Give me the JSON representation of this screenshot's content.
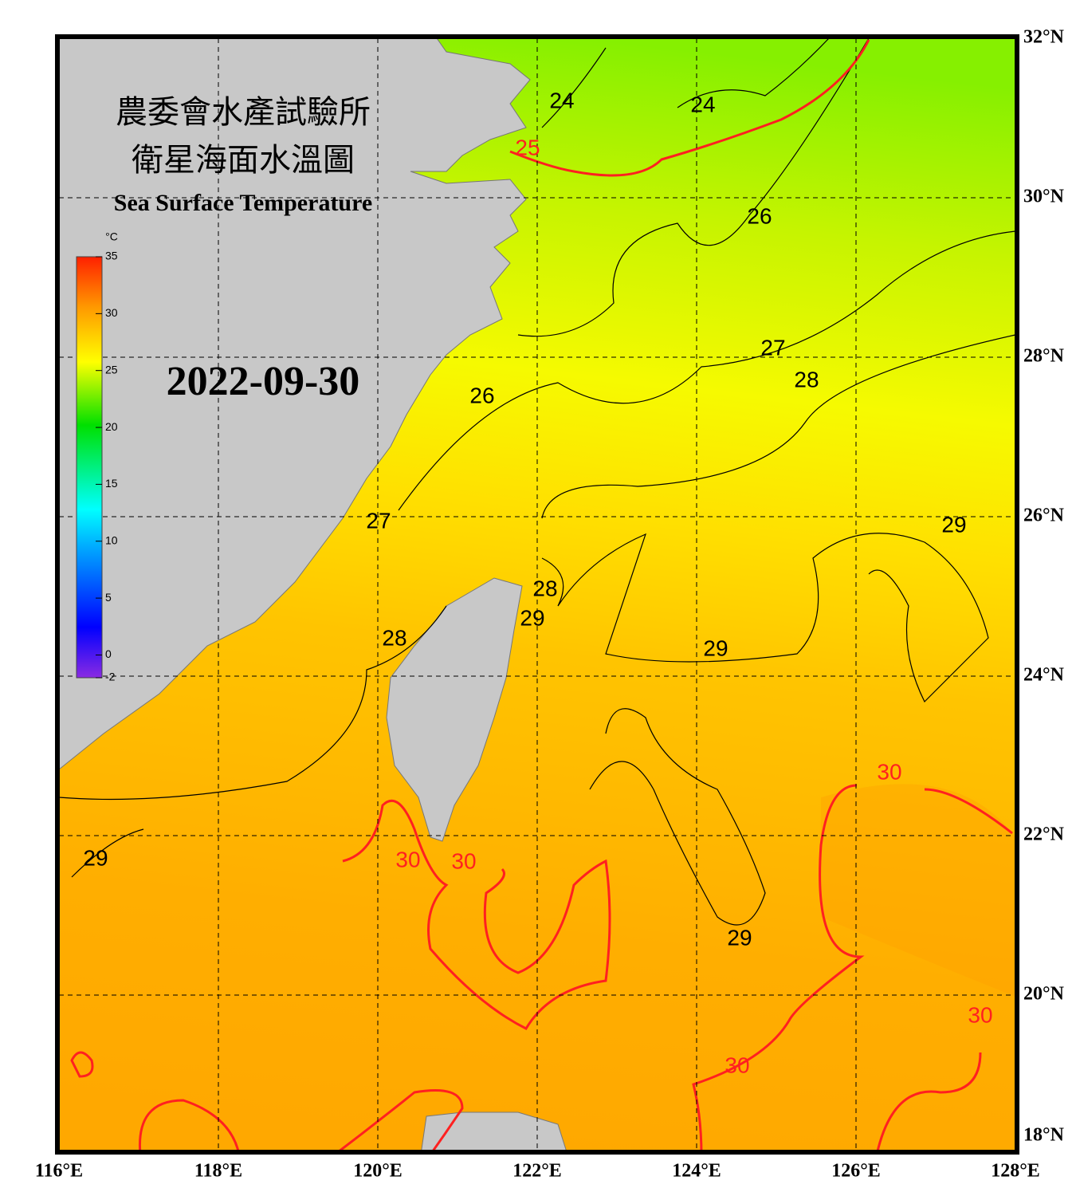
{
  "title_zh_1": "農委會水產試驗所",
  "title_zh_2": "衛星海面水溫圖",
  "title_en": "Sea Surface Temperature",
  "date": "2022-09-30",
  "colorbar": {
    "unit": "°C",
    "lim": [
      -2,
      35
    ],
    "ticks": [
      -2,
      0,
      5,
      10,
      15,
      20,
      25,
      30,
      35
    ]
  },
  "map": {
    "lonlim": [
      116,
      128
    ],
    "latlim": [
      18,
      32
    ],
    "lonticks": [
      {
        "value": 116,
        "label": "116°E"
      },
      {
        "value": 118,
        "label": "118°E"
      },
      {
        "value": 120,
        "label": "120°E"
      },
      {
        "value": 122,
        "label": "122°E"
      },
      {
        "value": 124,
        "label": "124°E"
      },
      {
        "value": 126,
        "label": "126°E"
      },
      {
        "value": 128,
        "label": "128°E"
      }
    ],
    "latticks": [
      {
        "value": 18,
        "label": "18°N"
      },
      {
        "value": 20,
        "label": "20°N"
      },
      {
        "value": 22,
        "label": "22°N"
      },
      {
        "value": 24,
        "label": "24°N"
      },
      {
        "value": 26,
        "label": "26°N"
      },
      {
        "value": 28,
        "label": "28°N"
      },
      {
        "value": 30,
        "label": "30°N"
      },
      {
        "value": 32,
        "label": "32°N"
      }
    ]
  },
  "contour_labels": [
    {
      "value": 24,
      "lon": 122.31,
      "lat": 31.2,
      "color": "#000000"
    },
    {
      "value": 24,
      "lon": 124.08,
      "lat": 31.15,
      "color": "#000000"
    },
    {
      "value": 25,
      "lon": 121.88,
      "lat": 30.61,
      "color": "#ff2020"
    },
    {
      "value": 26,
      "lon": 124.79,
      "lat": 29.75,
      "color": "#000000"
    },
    {
      "value": 27,
      "lon": 124.96,
      "lat": 28.1,
      "color": "#000000"
    },
    {
      "value": 28,
      "lon": 125.38,
      "lat": 27.7,
      "color": "#000000"
    },
    {
      "value": 26,
      "lon": 121.31,
      "lat": 27.5,
      "color": "#000000"
    },
    {
      "value": 27,
      "lon": 120.01,
      "lat": 25.93,
      "color": "#000000"
    },
    {
      "value": 29,
      "lon": 127.23,
      "lat": 25.88,
      "color": "#000000"
    },
    {
      "value": 28,
      "lon": 122.1,
      "lat": 25.08,
      "color": "#000000"
    },
    {
      "value": 29,
      "lon": 121.94,
      "lat": 24.71,
      "color": "#000000"
    },
    {
      "value": 28,
      "lon": 120.21,
      "lat": 24.46,
      "color": "#000000"
    },
    {
      "value": 29,
      "lon": 124.24,
      "lat": 24.33,
      "color": "#000000"
    },
    {
      "value": 30,
      "lon": 126.42,
      "lat": 22.78,
      "color": "#ff2020"
    },
    {
      "value": 29,
      "lon": 116.46,
      "lat": 21.7,
      "color": "#000000"
    },
    {
      "value": 30,
      "lon": 120.38,
      "lat": 21.68,
      "color": "#ff2020"
    },
    {
      "value": 30,
      "lon": 121.08,
      "lat": 21.66,
      "color": "#ff2020"
    },
    {
      "value": 29,
      "lon": 124.54,
      "lat": 20.7,
      "color": "#000000"
    },
    {
      "value": 30,
      "lon": 127.56,
      "lat": 19.73,
      "color": "#ff2020"
    },
    {
      "value": 30,
      "lon": 124.51,
      "lat": 19.1,
      "color": "#ff2020"
    }
  ]
}
